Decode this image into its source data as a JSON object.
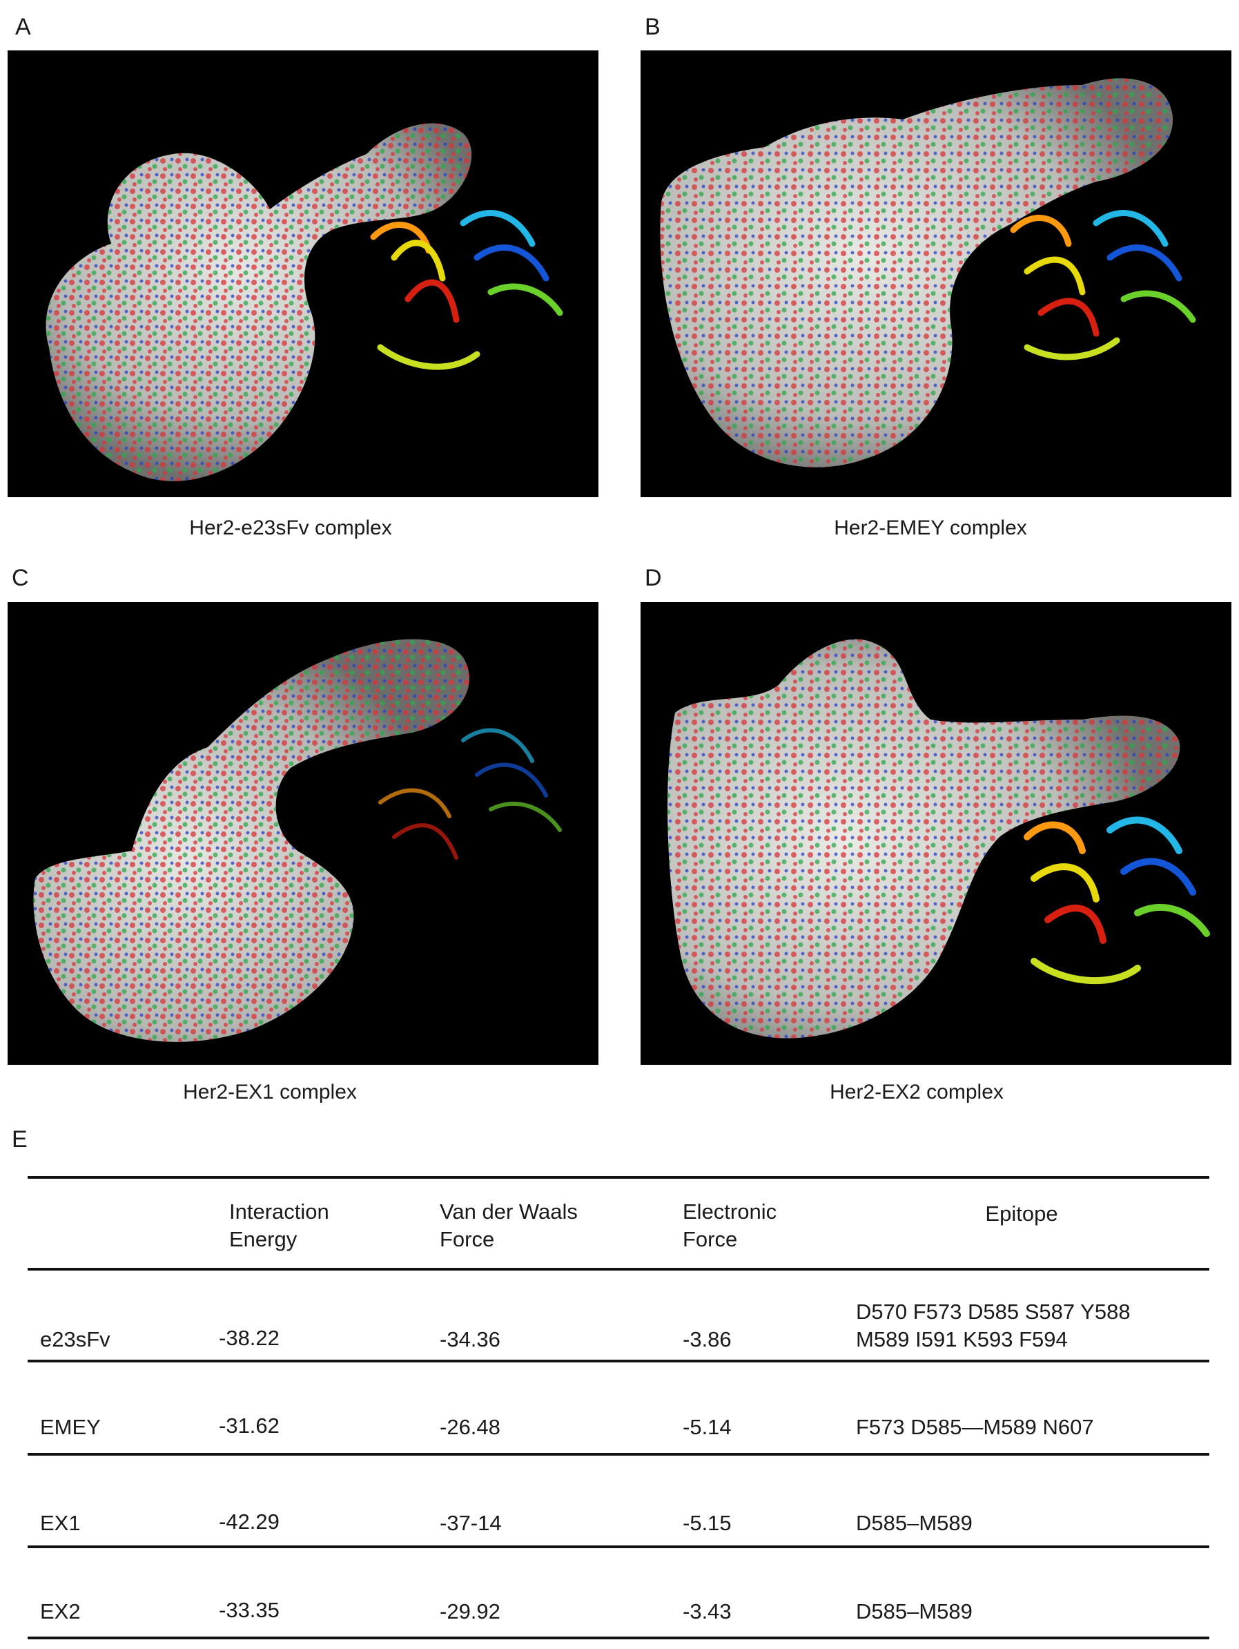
{
  "panels": [
    {
      "letter": "A",
      "caption": "Her2-e23sFv complex"
    },
    {
      "letter": "B",
      "caption": "Her2-EMEY complex"
    },
    {
      "letter": "C",
      "caption": "Her2-EX1 complex"
    },
    {
      "letter": "D",
      "caption": "Her2-EX2 complex"
    }
  ],
  "table": {
    "letter": "E",
    "headers": [
      "",
      [
        "Interaction",
        "Energy"
      ],
      [
        "Van der Waals",
        "Force"
      ],
      [
        "Electronic",
        "Force"
      ],
      "Epitope"
    ],
    "rows": [
      {
        "name": "e23sFv",
        "energy": "-38.22",
        "vdw": "-34.36",
        "elec": "-3.86",
        "epitope": [
          "D570 F573 D585 S587 Y588",
          "M589 I591 K593 F594"
        ]
      },
      {
        "name": "EMEY",
        "energy": "-31.62",
        "vdw": "-26.48",
        "elec": "-5.14",
        "epitope": [
          "F573 D585—M589 N607"
        ]
      },
      {
        "name": "EX1",
        "energy": "-42.29",
        "vdw": "-37-14",
        "elec": "-5.15",
        "epitope": [
          "D585–M589"
        ]
      },
      {
        "name": "EX2",
        "energy": "-33.35",
        "vdw": "-29.92",
        "elec": "-3.43",
        "epitope": [
          "D585–M589"
        ]
      }
    ]
  }
}
